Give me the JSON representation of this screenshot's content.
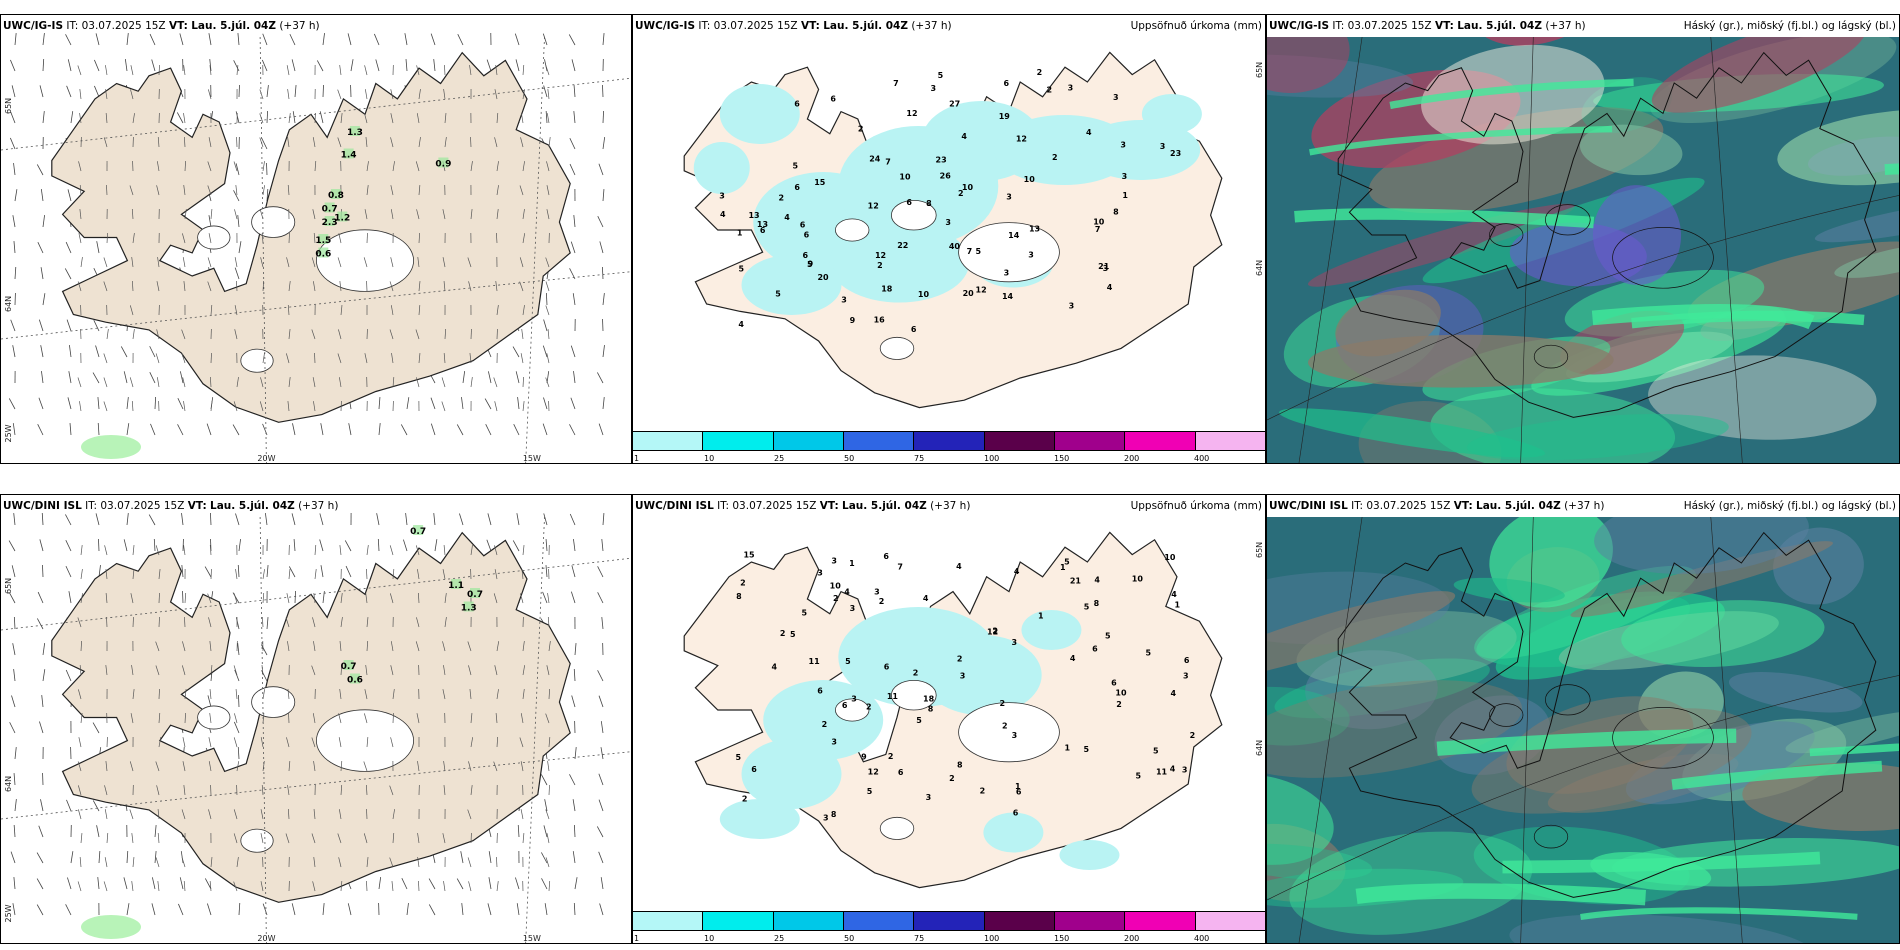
{
  "panels": [
    {
      "id": "p1",
      "model": "UWC/IG-IS",
      "it_label": "IT:",
      "it_value": "03.07.2025 15Z",
      "vt_label": "VT:",
      "vt_value": "Lau. 5.júl. 04Z",
      "lead": "(+37 h)",
      "right_title": "",
      "lat_labels": [
        "65N",
        "64N",
        "25W"
      ],
      "lon_labels": [
        "20W",
        "15W"
      ],
      "precip_values": [
        "1.3",
        "1.4",
        "0.9",
        "0.8",
        "0.7",
        "2.3",
        "1.2",
        "1.5",
        "0.6"
      ]
    },
    {
      "id": "p2",
      "model": "UWC/IG-IS",
      "it_label": "IT:",
      "it_value": "03.07.2025 15Z",
      "vt_label": "VT:",
      "vt_value": "Lau. 5.júl. 04Z",
      "lead": "(+37 h)",
      "right_title": "Uppsöfnuð úrkoma (mm)",
      "lat_labels": [
        "65N",
        "64N"
      ],
      "precip_values": [
        "5",
        "3",
        "6",
        "4",
        "7",
        "15",
        "6",
        "9",
        "3",
        "2",
        "13",
        "5",
        "3",
        "2",
        "6",
        "7",
        "4",
        "3",
        "5",
        "16",
        "14",
        "3",
        "12",
        "10",
        "26",
        "18",
        "13",
        "6",
        "4",
        "13",
        "5",
        "20",
        "12",
        "40",
        "3",
        "6",
        "3",
        "3",
        "12",
        "10",
        "23",
        "27",
        "10",
        "6",
        "4",
        "6",
        "14",
        "20",
        "12",
        "3",
        "7",
        "9",
        "23",
        "3",
        "12",
        "5",
        "24",
        "21",
        "6",
        "2",
        "4",
        "2",
        "19",
        "6",
        "22",
        "5",
        "6",
        "10",
        "8",
        "3",
        "7",
        "3",
        "10",
        "4",
        "2",
        "3",
        "1",
        "8",
        "2",
        "3",
        "1",
        "2"
      ]
    },
    {
      "id": "p3",
      "model": "UWC/IG-IS",
      "it_label": "IT:",
      "it_value": "03.07.2025 15Z",
      "vt_label": "VT:",
      "vt_value": "Lau. 5.júl. 04Z",
      "lead": "(+37 h)",
      "right_title": "Háský (gr.), miðský (fj.bl.) og lágský (bl.)"
    },
    {
      "id": "p4",
      "model": "UWC/DINI ISL",
      "it_label": "IT:",
      "it_value": "03.07.2025 15Z",
      "vt_label": "VT:",
      "vt_value": "Lau. 5.júl. 04Z",
      "lead": "(+37 h)",
      "right_title": "",
      "lat_labels": [
        "65N",
        "64N",
        "25W"
      ],
      "lon_labels": [
        "20W",
        "15W"
      ],
      "precip_values": [
        "0.7",
        "1.1",
        "0.7",
        "1.3",
        "0.7",
        "0.6"
      ]
    },
    {
      "id": "p5",
      "model": "UWC/DINI ISL",
      "it_label": "IT:",
      "it_value": "03.07.2025 15Z",
      "vt_label": "VT:",
      "vt_value": "Lau. 5.júl. 04Z",
      "lead": "(+37 h)",
      "right_title": "Uppsöfnuð úrkoma (mm)",
      "lat_labels": [
        "65N",
        "64N"
      ],
      "precip_values": [
        "2",
        "1",
        "8",
        "6",
        "3",
        "2",
        "2",
        "1",
        "2",
        "5",
        "6",
        "3",
        "2",
        "2",
        "4",
        "2",
        "2",
        "5",
        "10",
        "6",
        "3",
        "1",
        "2",
        "4",
        "5",
        "21",
        "4",
        "5",
        "1",
        "4",
        "6",
        "7",
        "3",
        "5",
        "6",
        "5",
        "2",
        "11",
        "5",
        "10",
        "6",
        "8",
        "4",
        "5",
        "8",
        "9",
        "11",
        "6",
        "3",
        "15",
        "5",
        "6",
        "2",
        "5",
        "4",
        "8",
        "10",
        "11",
        "6",
        "12",
        "3",
        "1",
        "1",
        "3",
        "18",
        "8",
        "4",
        "5",
        "10",
        "2",
        "4",
        "3",
        "2",
        "6",
        "2",
        "12",
        "3",
        "4",
        "2",
        "2",
        "3",
        "6",
        "5",
        "4",
        "5",
        "3",
        "3",
        "2",
        "3"
      ]
    },
    {
      "id": "p6",
      "model": "UWC/DINI ISL",
      "it_label": "IT:",
      "it_value": "03.07.2025 15Z",
      "vt_label": "VT:",
      "vt_value": "Lau. 5.júl. 04Z",
      "lead": "(+37 h)",
      "right_title": "Háský (gr.), miðský (fj.bl.) og lágský (bl.)"
    }
  ],
  "colorbar": {
    "labels": [
      "1",
      "10",
      "25",
      "50",
      "75",
      "100",
      "150",
      "200",
      "400"
    ],
    "colors": [
      "#b4f7f7",
      "#00eded",
      "#00c8e8",
      "#2f66e4",
      "#2323b8",
      "#5a004a",
      "#a0008c",
      "#f000b4",
      "#f5b4f0"
    ]
  },
  "colors": {
    "land": "#eee2d2",
    "land_light": "#fbeee2",
    "precip": "#b9f3f3",
    "cloud_dark": "#2a6d7a",
    "cloud_mid": "#1fbf8c",
    "cloud_light": "#40ea9a"
  }
}
